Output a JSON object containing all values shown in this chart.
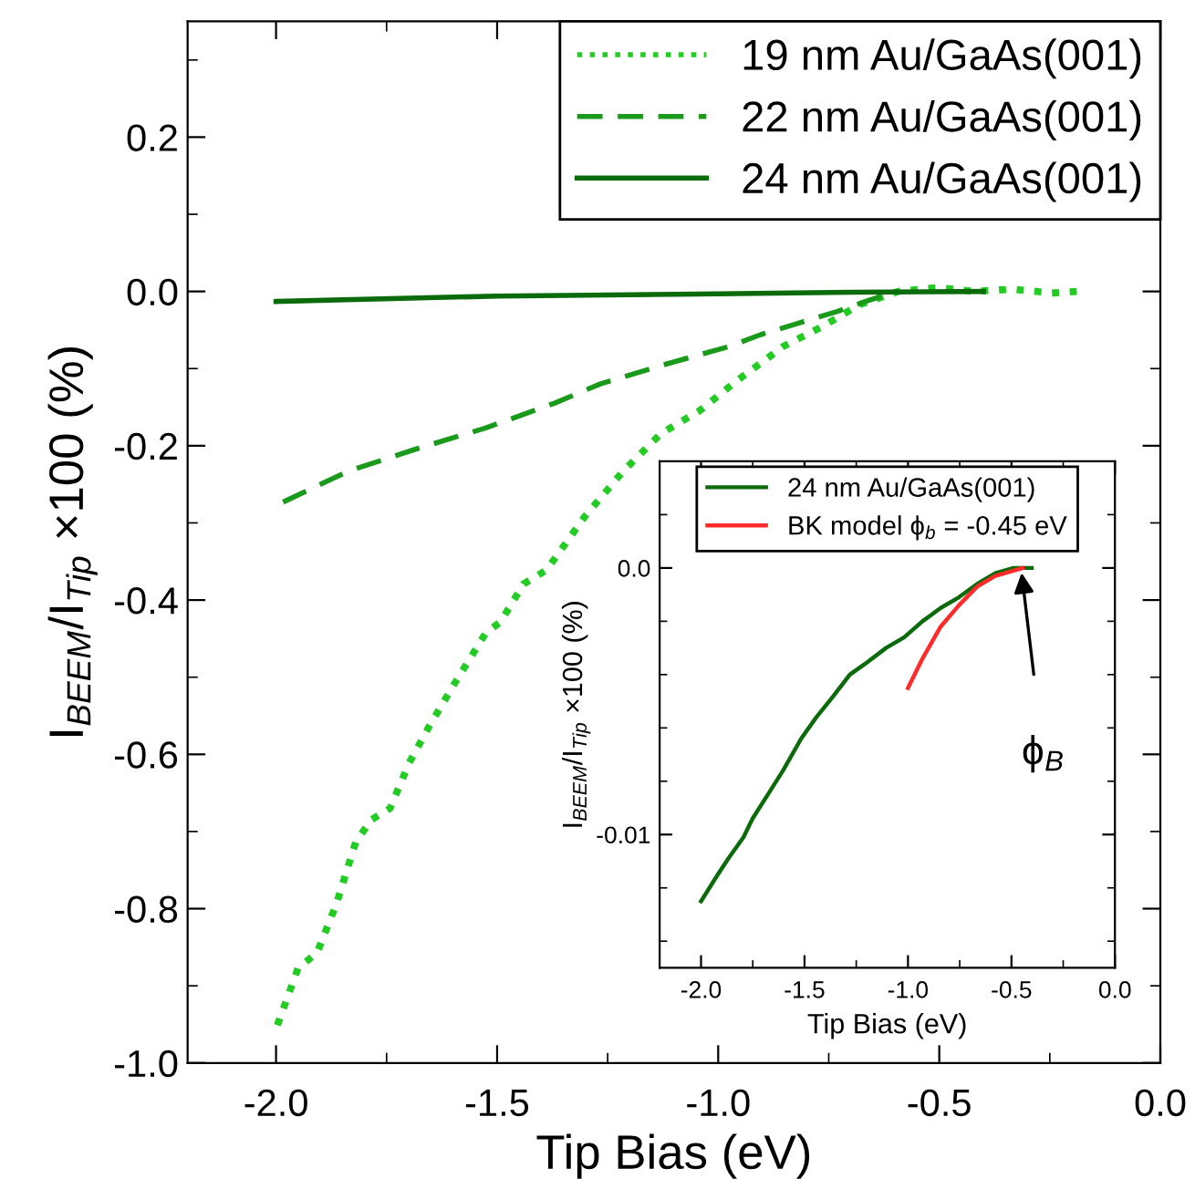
{
  "chart_data": [
    {
      "type": "line",
      "xlabel": "Tip Bias (eV)",
      "ylabel": "I$_{BEEM}$/I$_{Tip}$ ×100 (%)",
      "xlim": [
        -2.2,
        0.0
      ],
      "ylim": [
        -1.0,
        0.35
      ],
      "xticks": [
        {
          "value": -2.0,
          "label": "-2.0"
        },
        {
          "value": -1.5,
          "label": "-1.5"
        },
        {
          "value": -1.0,
          "label": "-1.0"
        },
        {
          "value": -0.5,
          "label": "-0.5"
        },
        {
          "value": 0.0,
          "label": "0.0"
        }
      ],
      "yticks": [
        {
          "value": -1.0,
          "label": "-1.0"
        },
        {
          "value": -0.8,
          "label": "-0.8"
        },
        {
          "value": -0.6,
          "label": "-0.6"
        },
        {
          "value": -0.4,
          "label": "-0.4"
        },
        {
          "value": -0.2,
          "label": "-0.2"
        },
        {
          "value": 0.0,
          "label": "0.0"
        },
        {
          "value": 0.2,
          "label": "0.2"
        }
      ],
      "grid": false,
      "legend": "top right",
      "series": [
        {
          "name": "19 nm Au/GaAs(001)",
          "color": "#22cc22",
          "line_style": "dotted",
          "x": [
            -1.997,
            -1.95,
            -1.907,
            -1.863,
            -1.82,
            -1.785,
            -1.742,
            -1.699,
            -1.656,
            -1.595,
            -1.526,
            -1.492,
            -1.44,
            -1.388,
            -1.302,
            -1.215,
            -1.129,
            -1.043,
            -0.956,
            -0.852,
            -0.766,
            -0.68,
            -0.593,
            -0.506,
            -0.42,
            -0.334,
            -0.247,
            -0.187
          ],
          "values": [
            -0.951,
            -0.877,
            -0.857,
            -0.793,
            -0.714,
            -0.685,
            -0.67,
            -0.611,
            -0.566,
            -0.507,
            -0.443,
            -0.428,
            -0.379,
            -0.361,
            -0.292,
            -0.233,
            -0.184,
            -0.155,
            -0.115,
            -0.071,
            -0.046,
            -0.017,
            0.0,
            0.005,
            0.0,
            0.003,
            -0.002,
            0.0
          ]
        },
        {
          "name": "22 nm Au/GaAs(001)",
          "color": "#1a9a1a",
          "line_style": "dashed",
          "x": [
            -1.984,
            -1.837,
            -1.682,
            -1.526,
            -1.371,
            -1.267,
            -1.129,
            -0.973,
            -0.904,
            -0.818,
            -0.731,
            -0.662,
            -0.593
          ],
          "values": [
            -0.273,
            -0.233,
            -0.204,
            -0.177,
            -0.145,
            -0.12,
            -0.096,
            -0.071,
            -0.056,
            -0.041,
            -0.026,
            -0.012,
            0.0
          ]
        },
        {
          "name": "24 nm Au/GaAs(001)",
          "color": "#0b6b0b",
          "line_style": "solid",
          "x": [
            -2.0,
            -1.5,
            -1.0,
            -0.7,
            -0.4
          ],
          "values": [
            -0.013,
            -0.006,
            -0.003,
            -0.001,
            0.0
          ]
        }
      ]
    },
    {
      "type": "line",
      "xlabel": "Tip Bias (eV)",
      "ylabel": "I$_{BEEM}$/I$_{Tip}$ ×100 (%)",
      "xlim": [
        -2.2,
        0.0
      ],
      "ylim": [
        -0.015,
        0.004
      ],
      "xticks": [
        {
          "value": -2.0,
          "label": "-2.0"
        },
        {
          "value": -1.5,
          "label": "-1.5"
        },
        {
          "value": -1.0,
          "label": "-1.0"
        },
        {
          "value": -0.5,
          "label": "-0.5"
        },
        {
          "value": 0.0,
          "label": "0.0"
        }
      ],
      "yticks": [
        {
          "value": -0.01,
          "label": "-0.01"
        },
        {
          "value": 0.0,
          "label": "0.0"
        }
      ],
      "grid": false,
      "legend": "top",
      "annotations": [
        "ϕ$_{B}$"
      ],
      "series": [
        {
          "name": "24 nm Au/GaAs(001)",
          "color": "#0b6b0b",
          "line_style": "solid",
          "x": [
            -2.0,
            -1.927,
            -1.868,
            -1.795,
            -1.751,
            -1.677,
            -1.604,
            -1.516,
            -1.443,
            -1.37,
            -1.281,
            -1.208,
            -1.106,
            -1.018,
            -0.93,
            -0.842,
            -0.754,
            -0.666,
            -0.578,
            -0.49,
            -0.402
          ],
          "values": [
            -0.0125,
            -0.0116,
            -0.0109,
            -0.0101,
            -0.0094,
            -0.0085,
            -0.0076,
            -0.0064,
            -0.0056,
            -0.0049,
            -0.004,
            -0.0036,
            -0.003,
            -0.0026,
            -0.002,
            -0.0015,
            -0.0011,
            -0.0006,
            -0.0002,
            0.0,
            0.0
          ]
        },
        {
          "name": "BK model ϕ$_{b}$ = -0.45 eV",
          "color": "#ff2a2a",
          "line_style": "solid",
          "x": [
            -1.0,
            -0.93,
            -0.842,
            -0.754,
            -0.666,
            -0.578,
            -0.49,
            -0.446
          ],
          "values": [
            -0.0045,
            -0.0034,
            -0.0022,
            -0.0014,
            -0.0007,
            -0.0003,
            -0.0001,
            0.0
          ]
        }
      ]
    }
  ]
}
